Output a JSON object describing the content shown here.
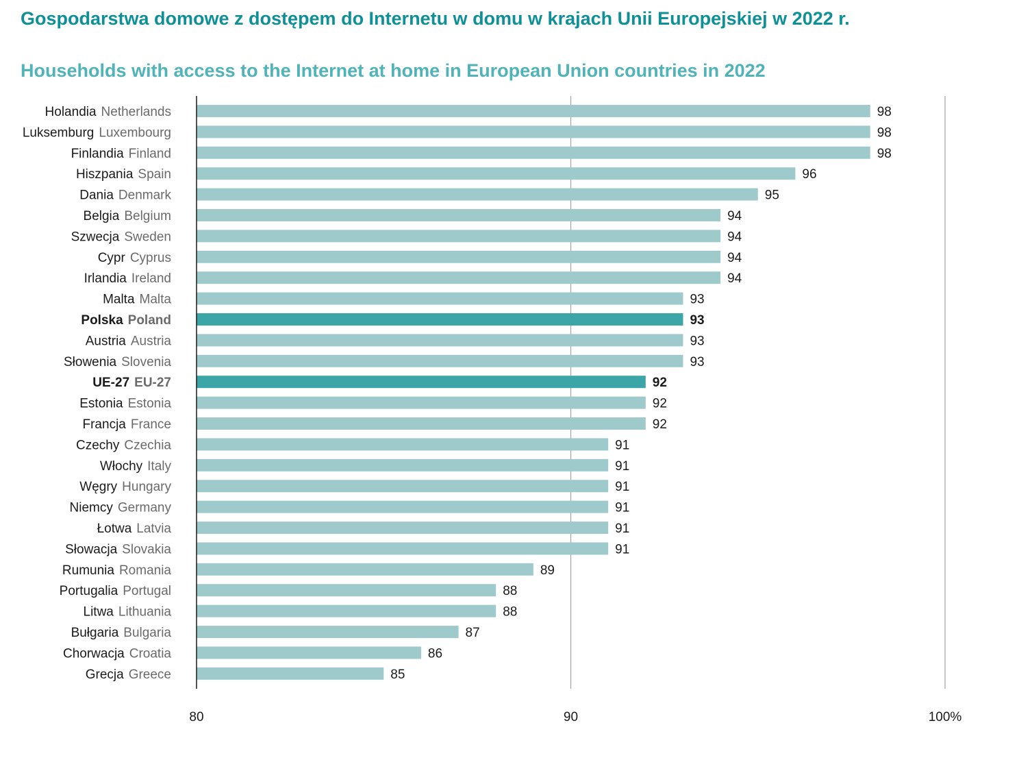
{
  "title_pl": "Gospodarstwa domowe z dostępem do Internetu w domu w krajach Unii Europejskiej w 2022 r.",
  "title_en": "Households with access to the Internet at home in European Union countries in 2022",
  "colors": {
    "bar": "#9fcacc",
    "highlight": "#3ba5a8",
    "title": "#0f9098",
    "subtitle": "#4fb3b8"
  },
  "chart_data": {
    "type": "bar",
    "orientation": "horizontal",
    "categories": [
      {
        "pl": "Holandia",
        "en": "Netherlands"
      },
      {
        "pl": "Luksemburg",
        "en": "Luxembourg"
      },
      {
        "pl": "Finlandia",
        "en": "Finland"
      },
      {
        "pl": "Hiszpania",
        "en": "Spain"
      },
      {
        "pl": "Dania",
        "en": "Denmark"
      },
      {
        "pl": "Belgia",
        "en": "Belgium"
      },
      {
        "pl": "Szwecja",
        "en": "Sweden"
      },
      {
        "pl": "Cypr",
        "en": "Cyprus"
      },
      {
        "pl": "Irlandia",
        "en": "Ireland"
      },
      {
        "pl": "Malta",
        "en": "Malta"
      },
      {
        "pl": "Polska",
        "en": "Poland",
        "highlight": true
      },
      {
        "pl": "Austria",
        "en": "Austria"
      },
      {
        "pl": "Słowenia",
        "en": "Slovenia"
      },
      {
        "pl": "UE-27",
        "en": "EU-27",
        "highlight": true
      },
      {
        "pl": "Estonia",
        "en": "Estonia"
      },
      {
        "pl": "Francja",
        "en": "France"
      },
      {
        "pl": "Czechy",
        "en": "Czechia"
      },
      {
        "pl": "Włochy",
        "en": "Italy"
      },
      {
        "pl": "Węgry",
        "en": "Hungary"
      },
      {
        "pl": "Niemcy",
        "en": "Germany"
      },
      {
        "pl": "Łotwa",
        "en": "Latvia"
      },
      {
        "pl": "Słowacja",
        "en": "Slovakia"
      },
      {
        "pl": "Rumunia",
        "en": "Romania"
      },
      {
        "pl": "Portugalia",
        "en": "Portugal"
      },
      {
        "pl": "Litwa",
        "en": "Lithuania"
      },
      {
        "pl": "Bułgaria",
        "en": "Bulgaria"
      },
      {
        "pl": "Chorwacja",
        "en": "Croatia"
      },
      {
        "pl": "Grecja",
        "en": "Greece"
      }
    ],
    "values": [
      98,
      98,
      98,
      96,
      95,
      94,
      94,
      94,
      94,
      93,
      93,
      93,
      93,
      92,
      92,
      92,
      91,
      91,
      91,
      91,
      91,
      91,
      89,
      88,
      88,
      87,
      86,
      85
    ],
    "xlim": [
      80,
      100
    ],
    "xticks": [
      80,
      90,
      100
    ],
    "xtick_labels": [
      "80",
      "90",
      "100%"
    ],
    "grid": true,
    "legend": "none"
  }
}
